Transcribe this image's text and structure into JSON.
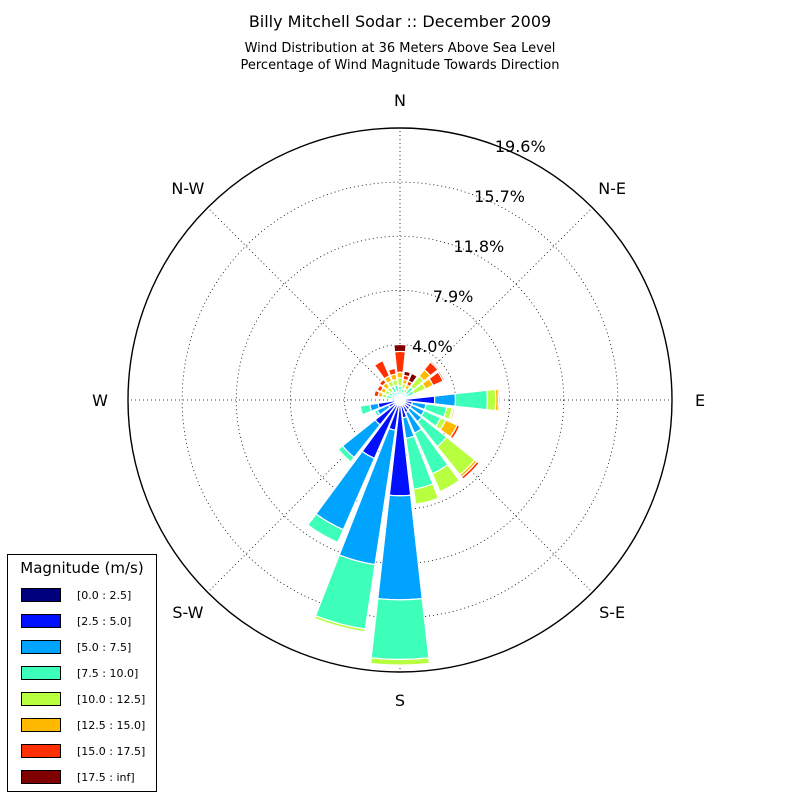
{
  "chart": {
    "title": "Billy Mitchell Sodar :: December 2009",
    "subtitle_line1": "Wind Distribution at 36 Meters Above Sea Level",
    "subtitle_line2": "Percentage of Wind Magnitude Towards Direction"
  },
  "legend": {
    "title": "Magnitude (m/s)",
    "items": [
      {
        "label": "[0.0 : 2.5]",
        "color": "#00007f"
      },
      {
        "label": "[2.5 : 5.0]",
        "color": "#0010ff"
      },
      {
        "label": "[5.0 : 7.5]",
        "color": "#00a4ff"
      },
      {
        "label": "[7.5 : 10.0]",
        "color": "#3dffba"
      },
      {
        "label": "[10.0 : 12.5]",
        "color": "#b7ff3f"
      },
      {
        "label": "[12.5 : 15.0]",
        "color": "#ffb900"
      },
      {
        "label": "[15.0 : 17.5]",
        "color": "#ff3000"
      },
      {
        "label": "[17.5 : inf]",
        "color": "#7f0000"
      }
    ]
  },
  "chart_data": {
    "type": "polar-bar",
    "title": "Billy Mitchell Sodar :: December 2009",
    "subtitle": [
      "Wind Distribution at 36 Meters Above Sea Level",
      "Percentage of Wind Magnitude Towards Direction"
    ],
    "direction_labels": [
      "N",
      "N-E",
      "E",
      "S-E",
      "S",
      "S-W",
      "W",
      "N-W"
    ],
    "radial_ticks": [
      "4.0%",
      "7.9%",
      "11.8%",
      "15.7%",
      "19.6%"
    ],
    "radial_max": 19.6,
    "grid": true,
    "legend_position": "bottom-left",
    "legend_title": "Magnitude (m/s)",
    "bins": [
      "[0.0 : 2.5]",
      "[2.5 : 5.0]",
      "[5.0 : 7.5]",
      "[7.5 : 10.0]",
      "[10.0 : 12.5]",
      "[12.5 : 15.0]",
      "[15.0 : 17.5]",
      "[17.5 : inf]"
    ],
    "sector_width_deg": 15,
    "sectors": [
      {
        "direction_deg": 0,
        "values": [
          0.1,
          0.1,
          0.2,
          0.6,
          0.6,
          0.4,
          1.5,
          0.5
        ]
      },
      {
        "direction_deg": 15,
        "values": [
          0.1,
          0.1,
          0.1,
          0.5,
          0.4,
          0.3,
          0.3,
          0.3
        ]
      },
      {
        "direction_deg": 30,
        "values": [
          0.1,
          0.1,
          0.1,
          0.3,
          0.3,
          0.3,
          0.3,
          0.6
        ]
      },
      {
        "direction_deg": 45,
        "values": [
          0.1,
          0.2,
          0.3,
          0.6,
          1.0,
          0.6,
          0.7,
          0.1
        ]
      },
      {
        "direction_deg": 60,
        "values": [
          0.1,
          0.2,
          0.2,
          0.6,
          0.9,
          0.6,
          0.8,
          0.1
        ]
      },
      {
        "direction_deg": 75,
        "values": [
          0.0,
          0.0,
          0.0,
          0.0,
          0.0,
          0.0,
          0.0,
          0.0
        ]
      },
      {
        "direction_deg": 90,
        "values": [
          0.2,
          2.3,
          1.5,
          2.3,
          0.6,
          0.2,
          0.1,
          0.05
        ]
      },
      {
        "direction_deg": 105,
        "values": [
          0.2,
          0.7,
          1.0,
          1.5,
          0.4,
          0.1,
          0.1,
          0.0
        ]
      },
      {
        "direction_deg": 120,
        "values": [
          0.2,
          0.7,
          1.0,
          1.3,
          0.4,
          0.9,
          0.2,
          0.0
        ]
      },
      {
        "direction_deg": 135,
        "values": [
          0.2,
          0.7,
          1.1,
          2.3,
          2.6,
          0.2,
          0.2,
          0.0
        ]
      },
      {
        "direction_deg": 150,
        "values": [
          0.2,
          0.8,
          1.6,
          3.2,
          1.4,
          0.0,
          0.0,
          0.0
        ]
      },
      {
        "direction_deg": 165,
        "values": [
          0.2,
          1.1,
          1.5,
          3.7,
          1.1,
          0.0,
          0.0,
          0.0
        ]
      },
      {
        "direction_deg": 180,
        "values": [
          0.2,
          6.7,
          7.5,
          4.3,
          0.4,
          0.0,
          0.0,
          0.0
        ]
      },
      {
        "direction_deg": 195,
        "values": [
          0.2,
          2.0,
          9.8,
          4.7,
          0.2,
          0.0,
          0.0,
          0.0
        ]
      },
      {
        "direction_deg": 210,
        "values": [
          0.2,
          4.4,
          5.6,
          1.0,
          0.0,
          0.0,
          0.0,
          0.0
        ]
      },
      {
        "direction_deg": 225,
        "values": [
          0.2,
          2.1,
          3.0,
          0.4,
          0.1,
          0.0,
          0.0,
          0.0
        ]
      },
      {
        "direction_deg": 240,
        "values": [
          0.2,
          0.7,
          0.9,
          0.2,
          0.0,
          0.0,
          0.0,
          0.0
        ]
      },
      {
        "direction_deg": 255,
        "values": [
          0.2,
          1.4,
          0.6,
          0.7,
          0.0,
          0.0,
          0.0,
          0.0
        ]
      },
      {
        "direction_deg": 270,
        "values": [
          0.1,
          0.2,
          0.3,
          0.1,
          0.0,
          0.0,
          0.0,
          0.0
        ]
      },
      {
        "direction_deg": 285,
        "values": [
          0.1,
          0.2,
          0.3,
          0.4,
          0.3,
          0.3,
          0.3,
          0.0
        ]
      },
      {
        "direction_deg": 300,
        "values": [
          0.1,
          0.2,
          0.3,
          0.3,
          0.3,
          0.3,
          0.3,
          0.0
        ]
      },
      {
        "direction_deg": 315,
        "values": [
          0.1,
          0.1,
          0.2,
          0.4,
          0.4,
          0.4,
          0.3,
          0.0
        ]
      },
      {
        "direction_deg": 330,
        "values": [
          0.1,
          0.2,
          0.3,
          0.5,
          0.4,
          0.4,
          1.2,
          0.0
        ]
      },
      {
        "direction_deg": 345,
        "values": [
          0.1,
          0.2,
          0.3,
          0.5,
          0.4,
          0.4,
          0.4,
          0.0
        ]
      }
    ]
  }
}
